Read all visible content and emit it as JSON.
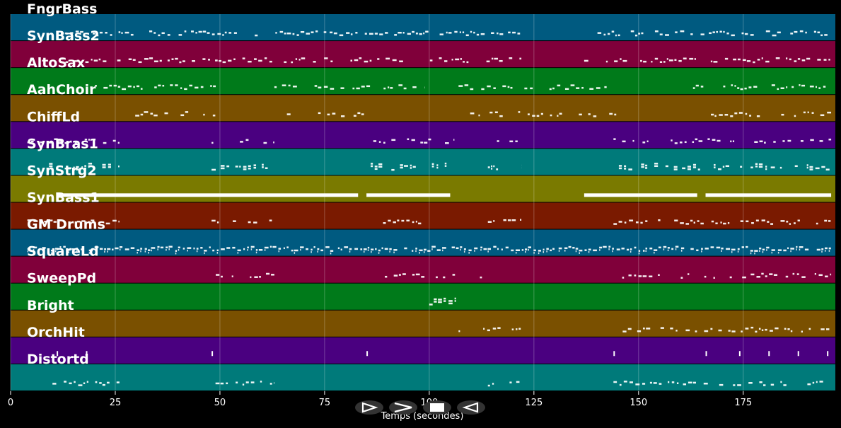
{
  "chart_data": {
    "type": "piano-roll",
    "xlabel": "Temps (secondes)",
    "xlim": [
      0,
      197
    ],
    "xticks": [
      0,
      25,
      50,
      75,
      100,
      125,
      150,
      175
    ],
    "grid": true,
    "tracks": [
      {
        "name": "FngrBass",
        "color": "#005a80",
        "segments": [
          [
            12,
            122
          ],
          [
            137,
            196
          ]
        ],
        "density": 0.45,
        "pattern": "dots"
      },
      {
        "name": "SynBass2",
        "color": "#80003a",
        "segments": [
          [
            12,
            122
          ],
          [
            137,
            196
          ]
        ],
        "density": 0.45,
        "pattern": "dots"
      },
      {
        "name": "AltoSax",
        "color": "#007a1a",
        "segments": [
          [
            19,
            49
          ],
          [
            63,
            99
          ],
          [
            107,
            143
          ],
          [
            163,
            196
          ]
        ],
        "density": 0.4,
        "pattern": "dots"
      },
      {
        "name": "AahChoir",
        "color": "#7a5000",
        "segments": [
          [
            29,
            49
          ],
          [
            66,
            86
          ],
          [
            107,
            145
          ],
          [
            166,
            196
          ]
        ],
        "density": 0.3,
        "pattern": "dots"
      },
      {
        "name": "ChiffLd",
        "color": "#4a0080",
        "segments": [
          [
            4,
            26
          ],
          [
            48,
            63
          ],
          [
            86,
            106
          ],
          [
            114,
            122
          ],
          [
            144,
            196
          ]
        ],
        "density": 0.25,
        "pattern": "dots"
      },
      {
        "name": "SynBras1",
        "color": "#007a7a",
        "segments": [
          [
            4,
            26
          ],
          [
            48,
            63
          ],
          [
            86,
            106
          ],
          [
            114,
            122
          ],
          [
            144,
            196
          ]
        ],
        "density": 0.4,
        "pattern": "chords"
      },
      {
        "name": "SynStrg2",
        "color": "#7a7a00",
        "segments": [
          [
            11,
            83
          ],
          [
            85,
            105
          ],
          [
            137,
            164
          ],
          [
            166,
            196
          ]
        ],
        "density": 1,
        "pattern": "bar"
      },
      {
        "name": "SynBass1",
        "color": "#7a1a00",
        "segments": [
          [
            4,
            26
          ],
          [
            48,
            63
          ],
          [
            85,
            99
          ],
          [
            114,
            122
          ],
          [
            144,
            196
          ]
        ],
        "density": 0.45,
        "pattern": "dots"
      },
      {
        "name": "GM Drums",
        "color": "#005a80",
        "segments": [
          [
            4,
            196
          ]
        ],
        "density": 0.7,
        "pattern": "drums"
      },
      {
        "name": "SquareLd",
        "color": "#80003a",
        "segments": [
          [
            49,
            63
          ],
          [
            86,
            114
          ],
          [
            144,
            196
          ]
        ],
        "density": 0.3,
        "pattern": "dots"
      },
      {
        "name": "SweepPd",
        "color": "#007a1a",
        "segments": [
          [
            100,
            107
          ]
        ],
        "density": 1,
        "pattern": "chords"
      },
      {
        "name": "Bright",
        "color": "#7a5000",
        "segments": [
          [
            107,
            122
          ],
          [
            144,
            196
          ]
        ],
        "density": 0.35,
        "pattern": "dots"
      },
      {
        "name": "OrchHit",
        "color": "#4a0080",
        "segments": [
          [
            11,
            12
          ],
          [
            18,
            19
          ],
          [
            48,
            49
          ],
          [
            85,
            86
          ],
          [
            144,
            145
          ],
          [
            166,
            167
          ],
          [
            174,
            175
          ],
          [
            181,
            182
          ],
          [
            188,
            189
          ],
          [
            195,
            196
          ]
        ],
        "density": 1,
        "pattern": "hits"
      },
      {
        "name": "Distortd",
        "color": "#007a7a",
        "segments": [
          [
            10,
            26
          ],
          [
            48,
            63
          ],
          [
            114,
            122
          ],
          [
            144,
            196
          ]
        ],
        "density": 0.4,
        "pattern": "dots"
      }
    ]
  },
  "controls": {
    "icons": [
      "play-forward-icon",
      "next-icon",
      "stop-icon",
      "play-backward-icon"
    ]
  }
}
